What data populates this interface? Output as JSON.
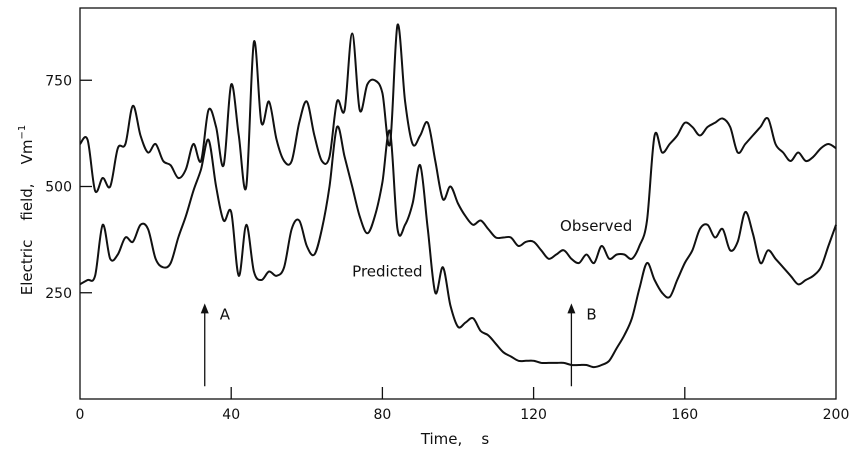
{
  "chart_data": {
    "type": "line",
    "title": "",
    "xlabel": "Time,    s",
    "ylabel": "Electric    field,    Vm",
    "ylabel_superscript": "−1",
    "xlim": [
      0,
      200
    ],
    "ylim": [
      0,
      920
    ],
    "x_ticks": [
      0,
      40,
      80,
      120,
      160,
      200
    ],
    "y_ticks": [
      250,
      500,
      750
    ],
    "grid": false,
    "legend": "none (series labeled inline)",
    "series": [
      {
        "name": "Observed",
        "x": [
          0,
          2,
          4,
          6,
          8,
          10,
          12,
          14,
          16,
          18,
          20,
          22,
          24,
          26,
          28,
          30,
          32,
          34,
          36,
          38,
          40,
          42,
          44,
          46,
          48,
          50,
          52,
          54,
          56,
          58,
          60,
          62,
          64,
          66,
          68,
          70,
          72,
          74,
          76,
          78,
          80,
          82,
          84,
          86,
          88,
          90,
          92,
          94,
          96,
          98,
          100,
          102,
          104,
          106,
          108,
          110,
          112,
          114,
          116,
          118,
          120,
          122,
          124,
          126,
          128,
          130,
          132,
          134,
          136,
          138,
          140,
          142,
          144,
          146,
          148,
          150,
          152,
          154,
          156,
          158,
          160,
          162,
          164,
          166,
          168,
          170,
          172,
          174,
          176,
          178,
          180,
          182,
          184,
          186,
          188,
          190,
          192,
          194,
          196,
          198,
          200
        ],
        "values": [
          600,
          610,
          490,
          520,
          500,
          590,
          600,
          690,
          620,
          580,
          600,
          560,
          550,
          520,
          540,
          600,
          560,
          680,
          640,
          550,
          740,
          620,
          500,
          840,
          650,
          700,
          610,
          560,
          560,
          650,
          700,
          620,
          560,
          570,
          700,
          680,
          860,
          680,
          740,
          750,
          720,
          600,
          880,
          700,
          600,
          620,
          650,
          560,
          470,
          500,
          460,
          430,
          410,
          420,
          400,
          380,
          380,
          380,
          360,
          370,
          370,
          350,
          330,
          340,
          350,
          330,
          320,
          340,
          320,
          360,
          330,
          340,
          340,
          330,
          360,
          420,
          620,
          580,
          600,
          620,
          650,
          640,
          620,
          640,
          650,
          660,
          640,
          580,
          600,
          620,
          640,
          660,
          600,
          580,
          560,
          580,
          560,
          570,
          590,
          600,
          590
        ]
      },
      {
        "name": "Predicted",
        "x": [
          0,
          2,
          4,
          6,
          8,
          10,
          12,
          14,
          16,
          18,
          20,
          22,
          24,
          26,
          28,
          30,
          32,
          34,
          36,
          38,
          40,
          42,
          44,
          46,
          48,
          50,
          52,
          54,
          56,
          58,
          60,
          62,
          64,
          66,
          68,
          70,
          72,
          74,
          76,
          78,
          80,
          82,
          84,
          86,
          88,
          90,
          92,
          94,
          96,
          98,
          100,
          102,
          104,
          106,
          108,
          110,
          112,
          114,
          116,
          118,
          120,
          122,
          124,
          126,
          128,
          130,
          132,
          134,
          136,
          138,
          140,
          142,
          144,
          146,
          148,
          150,
          152,
          154,
          156,
          158,
          160,
          162,
          164,
          166,
          168,
          170,
          172,
          174,
          176,
          178,
          180,
          182,
          184,
          186,
          188,
          190,
          192,
          194,
          196,
          198,
          200
        ],
        "values": [
          270,
          280,
          290,
          410,
          330,
          340,
          380,
          370,
          410,
          400,
          330,
          310,
          320,
          380,
          430,
          490,
          540,
          610,
          500,
          420,
          440,
          290,
          410,
          300,
          280,
          300,
          290,
          310,
          400,
          420,
          360,
          340,
          400,
          500,
          640,
          570,
          500,
          430,
          390,
          430,
          510,
          630,
          400,
          410,
          460,
          550,
          400,
          250,
          310,
          220,
          170,
          180,
          190,
          160,
          150,
          130,
          110,
          100,
          90,
          90,
          90,
          85,
          85,
          85,
          85,
          80,
          80,
          80,
          75,
          80,
          90,
          120,
          150,
          190,
          260,
          320,
          280,
          250,
          240,
          280,
          320,
          350,
          400,
          410,
          380,
          400,
          350,
          370,
          440,
          390,
          320,
          350,
          330,
          310,
          290,
          270,
          280,
          290,
          310,
          360,
          410
        ]
      }
    ],
    "annotations": [
      {
        "text": "Observed",
        "x": 127,
        "y": 395
      },
      {
        "text": "Predicted",
        "x": 72,
        "y": 288
      },
      {
        "text": "A",
        "x": 33,
        "arrow_from_y": 30,
        "arrow_to_y": 225
      },
      {
        "text": "B",
        "x": 130,
        "arrow_from_y": 30,
        "arrow_to_y": 225
      }
    ],
    "colors": {
      "line": "#111111",
      "axis": "#111111",
      "background": "#ffffff"
    }
  }
}
